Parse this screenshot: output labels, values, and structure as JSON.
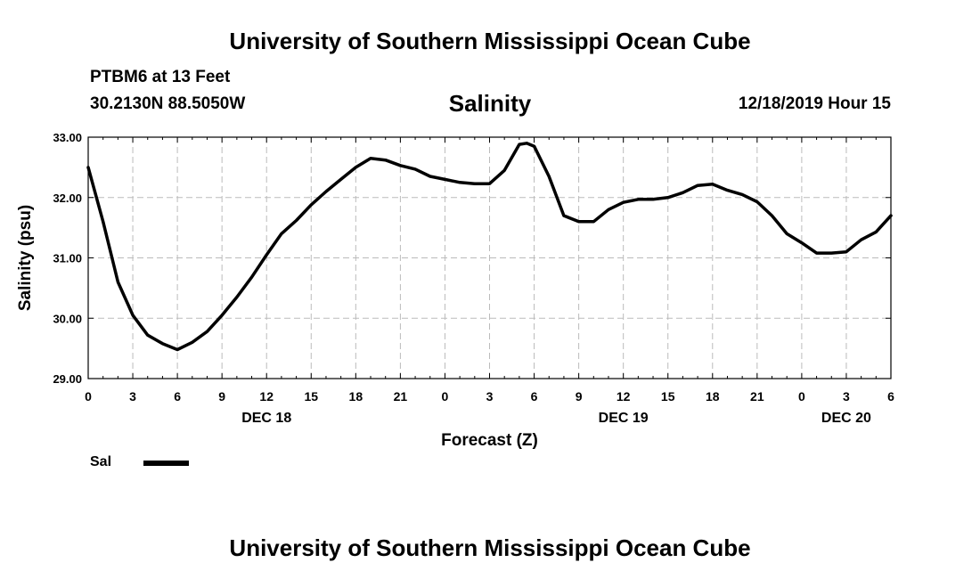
{
  "header": {
    "title": "University of Southern Mississippi Ocean Cube",
    "station": "PTBM6 at 13 Feet",
    "coordinates": "30.2130N 88.5050W",
    "variable": "Salinity",
    "issued": "12/18/2019 Hour 15"
  },
  "footer": {
    "title": "University of Southern Mississippi Ocean Cube"
  },
  "legend": {
    "label": "Sal",
    "color": "#000000"
  },
  "chart_data": {
    "type": "line",
    "title": "Salinity",
    "xlabel": "Forecast (Z)",
    "ylabel": "Salinity (psu)",
    "xlim": [
      0,
      54
    ],
    "ylim": [
      29.0,
      33.0
    ],
    "grid": true,
    "y_ticks": [
      "29.00",
      "30.00",
      "31.00",
      "32.00",
      "33.00"
    ],
    "x_ticks": [
      {
        "hour": 0,
        "label": "0"
      },
      {
        "hour": 3,
        "label": "3"
      },
      {
        "hour": 6,
        "label": "6"
      },
      {
        "hour": 9,
        "label": "9"
      },
      {
        "hour": 12,
        "label": "12"
      },
      {
        "hour": 15,
        "label": "15"
      },
      {
        "hour": 18,
        "label": "18"
      },
      {
        "hour": 21,
        "label": "21"
      },
      {
        "hour": 24,
        "label": "0"
      },
      {
        "hour": 27,
        "label": "3"
      },
      {
        "hour": 30,
        "label": "6"
      },
      {
        "hour": 33,
        "label": "9"
      },
      {
        "hour": 36,
        "label": "12"
      },
      {
        "hour": 39,
        "label": "15"
      },
      {
        "hour": 42,
        "label": "18"
      },
      {
        "hour": 45,
        "label": "21"
      },
      {
        "hour": 48,
        "label": "0"
      },
      {
        "hour": 51,
        "label": "3"
      },
      {
        "hour": 54,
        "label": "6"
      }
    ],
    "date_labels": [
      {
        "hour": 12,
        "label": "DEC 18"
      },
      {
        "hour": 36,
        "label": "DEC 19"
      },
      {
        "hour": 51,
        "label": "DEC 20"
      }
    ],
    "series": [
      {
        "name": "Sal",
        "x": [
          0,
          1,
          2,
          3,
          4,
          5,
          6,
          7,
          8,
          9,
          10,
          11,
          12,
          13,
          14,
          15,
          16,
          17,
          18,
          19,
          20,
          21,
          22,
          23,
          24,
          25,
          26,
          27,
          28,
          29,
          29.5,
          30,
          31,
          32,
          33,
          34,
          35,
          36,
          37,
          38,
          39,
          40,
          41,
          42,
          43,
          44,
          45,
          46,
          47,
          48,
          49,
          50,
          51,
          52,
          53,
          54
        ],
        "values": [
          32.5,
          31.6,
          30.6,
          30.05,
          29.72,
          29.58,
          29.48,
          29.6,
          29.78,
          30.05,
          30.35,
          30.68,
          31.05,
          31.4,
          31.62,
          31.88,
          32.1,
          32.3,
          32.5,
          32.65,
          32.62,
          32.53,
          32.47,
          32.35,
          32.3,
          32.25,
          32.23,
          32.23,
          32.45,
          32.88,
          32.9,
          32.85,
          32.35,
          31.7,
          31.6,
          31.6,
          31.8,
          31.92,
          31.97,
          31.97,
          32.0,
          32.08,
          32.2,
          32.22,
          32.12,
          32.05,
          31.93,
          31.7,
          31.4,
          31.25,
          31.08,
          31.08,
          31.1,
          31.3,
          31.43,
          31.7
        ]
      }
    ]
  }
}
